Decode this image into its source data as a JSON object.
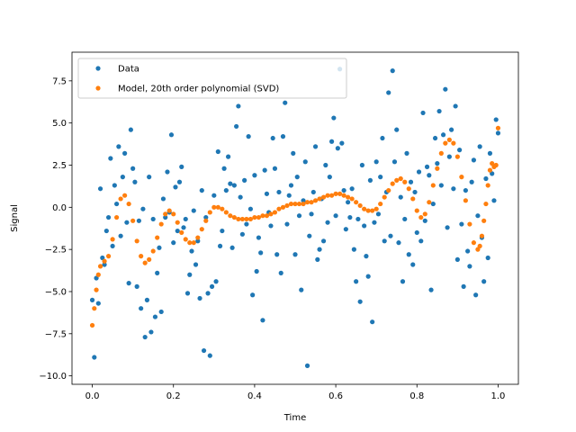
{
  "chart_data": {
    "type": "scatter",
    "title": "",
    "xlabel": "Time",
    "ylabel": "Signal",
    "xlim": [
      -0.05,
      1.05
    ],
    "ylim": [
      -10.5,
      9.2
    ],
    "xticks": [
      0.0,
      0.2,
      0.4,
      0.6,
      0.8,
      1.0
    ],
    "xtick_labels": [
      "0.0",
      "0.2",
      "0.4",
      "0.6",
      "0.8",
      "1.0"
    ],
    "yticks": [
      -10.0,
      -7.5,
      -5.0,
      -2.5,
      0.0,
      2.5,
      5.0,
      7.5
    ],
    "ytick_labels": [
      "−10.0",
      "−7.5",
      "−5.0",
      "−2.5",
      "0.0",
      "2.5",
      "5.0",
      "7.5"
    ],
    "grid": false,
    "legend_position": "upper-left",
    "series": [
      {
        "name": "Data",
        "kind": "scatter",
        "color": "#1f77b4",
        "points": [
          [
            0.0,
            -5.5
          ],
          [
            0.005,
            -8.9
          ],
          [
            0.01,
            -4.2
          ],
          [
            0.015,
            -5.7
          ],
          [
            0.02,
            1.1
          ],
          [
            0.025,
            -3.0
          ],
          [
            0.03,
            -3.4
          ],
          [
            0.035,
            -1.4
          ],
          [
            0.04,
            -0.6
          ],
          [
            0.045,
            2.9
          ],
          [
            0.05,
            -2.3
          ],
          [
            0.055,
            1.3
          ],
          [
            0.06,
            0.2
          ],
          [
            0.065,
            3.6
          ],
          [
            0.07,
            -1.7
          ],
          [
            0.075,
            1.8
          ],
          [
            0.08,
            3.2
          ],
          [
            0.085,
            -0.9
          ],
          [
            0.09,
            -4.5
          ],
          [
            0.095,
            4.6
          ],
          [
            0.1,
            2.3
          ],
          [
            0.105,
            1.5
          ],
          [
            0.11,
            -4.7
          ],
          [
            0.115,
            -0.8
          ],
          [
            0.12,
            -6.0
          ],
          [
            0.125,
            -0.1
          ],
          [
            0.13,
            -7.7
          ],
          [
            0.135,
            -5.5
          ],
          [
            0.14,
            1.8
          ],
          [
            0.145,
            -7.4
          ],
          [
            0.15,
            -0.7
          ],
          [
            0.155,
            -6.5
          ],
          [
            0.16,
            -3.9
          ],
          [
            0.165,
            -2.4
          ],
          [
            0.17,
            -6.2
          ],
          [
            0.175,
            0.5
          ],
          [
            0.18,
            -0.6
          ],
          [
            0.185,
            2.1
          ],
          [
            0.19,
            -0.3
          ],
          [
            0.195,
            4.3
          ],
          [
            0.2,
            -2.1
          ],
          [
            0.205,
            1.2
          ],
          [
            0.21,
            -1.4
          ],
          [
            0.215,
            1.5
          ],
          [
            0.22,
            2.4
          ],
          [
            0.225,
            -1.2
          ],
          [
            0.23,
            -0.7
          ],
          [
            0.235,
            -5.1
          ],
          [
            0.24,
            -4.0
          ],
          [
            0.245,
            -2.6
          ],
          [
            0.25,
            -0.2
          ],
          [
            0.255,
            -3.4
          ],
          [
            0.26,
            -2.0
          ],
          [
            0.265,
            -5.4
          ],
          [
            0.27,
            1.0
          ],
          [
            0.275,
            -8.5
          ],
          [
            0.28,
            -0.6
          ],
          [
            0.285,
            -5.1
          ],
          [
            0.29,
            -8.8
          ],
          [
            0.295,
            -4.7
          ],
          [
            0.3,
            0.7
          ],
          [
            0.305,
            -4.4
          ],
          [
            0.31,
            3.3
          ],
          [
            0.315,
            -2.3
          ],
          [
            0.32,
            -1.4
          ],
          [
            0.325,
            2.3
          ],
          [
            0.33,
            1.0
          ],
          [
            0.335,
            3.0
          ],
          [
            0.34,
            1.4
          ],
          [
            0.345,
            -2.4
          ],
          [
            0.35,
            1.3
          ],
          [
            0.355,
            4.8
          ],
          [
            0.36,
            6.0
          ],
          [
            0.365,
            0.6
          ],
          [
            0.37,
            -1.6
          ],
          [
            0.375,
            1.6
          ],
          [
            0.38,
            -1.0
          ],
          [
            0.385,
            4.2
          ],
          [
            0.39,
            -0.1
          ],
          [
            0.395,
            -5.2
          ],
          [
            0.4,
            1.9
          ],
          [
            0.405,
            -3.8
          ],
          [
            0.41,
            -1.8
          ],
          [
            0.415,
            -2.7
          ],
          [
            0.42,
            -6.7
          ],
          [
            0.425,
            2.2
          ],
          [
            0.43,
            0.8
          ],
          [
            0.435,
            -0.3
          ],
          [
            0.44,
            -1.1
          ],
          [
            0.445,
            4.1
          ],
          [
            0.45,
            2.3
          ],
          [
            0.455,
            -2.8
          ],
          [
            0.46,
            0.9
          ],
          [
            0.465,
            -3.9
          ],
          [
            0.47,
            4.2
          ],
          [
            0.475,
            6.2
          ],
          [
            0.48,
            -1.0
          ],
          [
            0.485,
            0.7
          ],
          [
            0.49,
            1.3
          ],
          [
            0.495,
            3.2
          ],
          [
            0.5,
            -2.8
          ],
          [
            0.505,
            1.8
          ],
          [
            0.51,
            -0.5
          ],
          [
            0.515,
            -4.9
          ],
          [
            0.52,
            0.4
          ],
          [
            0.525,
            2.7
          ],
          [
            0.53,
            -9.4
          ],
          [
            0.535,
            -1.7
          ],
          [
            0.54,
            -0.4
          ],
          [
            0.545,
            0.9
          ],
          [
            0.55,
            3.6
          ],
          [
            0.555,
            -3.1
          ],
          [
            0.56,
            -2.5
          ],
          [
            0.565,
            0.5
          ],
          [
            0.57,
            -2.0
          ],
          [
            0.575,
            2.5
          ],
          [
            0.58,
            -0.9
          ],
          [
            0.585,
            1.8
          ],
          [
            0.59,
            3.9
          ],
          [
            0.595,
            5.3
          ],
          [
            0.6,
            -0.5
          ],
          [
            0.605,
            3.5
          ],
          [
            0.61,
            8.2
          ],
          [
            0.615,
            3.8
          ],
          [
            0.62,
            1.0
          ],
          [
            0.625,
            -1.3
          ],
          [
            0.63,
            0.3
          ],
          [
            0.635,
            -0.6
          ],
          [
            0.64,
            1.1
          ],
          [
            0.645,
            -2.5
          ],
          [
            0.65,
            -4.4
          ],
          [
            0.655,
            -0.7
          ],
          [
            0.66,
            -5.6
          ],
          [
            0.665,
            2.5
          ],
          [
            0.67,
            -1.1
          ],
          [
            0.675,
            -2.9
          ],
          [
            0.68,
            -4.1
          ],
          [
            0.685,
            1.6
          ],
          [
            0.69,
            -6.8
          ],
          [
            0.695,
            -0.9
          ],
          [
            0.7,
            2.7
          ],
          [
            0.705,
            -0.4
          ],
          [
            0.71,
            1.8
          ],
          [
            0.715,
            4.1
          ],
          [
            0.72,
            -2.0
          ],
          [
            0.725,
            0.9
          ],
          [
            0.73,
            6.8
          ],
          [
            0.735,
            -1.7
          ],
          [
            0.74,
            8.1
          ],
          [
            0.745,
            2.7
          ],
          [
            0.75,
            4.6
          ],
          [
            0.755,
            -2.1
          ],
          [
            0.76,
            0.6
          ],
          [
            0.765,
            -4.4
          ],
          [
            0.77,
            -0.7
          ],
          [
            0.775,
            3.2
          ],
          [
            0.78,
            -2.8
          ],
          [
            0.785,
            1.5
          ],
          [
            0.79,
            -3.4
          ],
          [
            0.795,
            0.9
          ],
          [
            0.8,
            -1.5
          ],
          [
            0.805,
            2.1
          ],
          [
            0.81,
            -2.0
          ],
          [
            0.815,
            5.6
          ],
          [
            0.82,
            -0.8
          ],
          [
            0.825,
            2.4
          ],
          [
            0.83,
            1.9
          ],
          [
            0.835,
            -4.9
          ],
          [
            0.84,
            0.2
          ],
          [
            0.845,
            4.1
          ],
          [
            0.85,
            2.6
          ],
          [
            0.855,
            5.7
          ],
          [
            0.86,
            1.3
          ],
          [
            0.865,
            4.3
          ],
          [
            0.87,
            7.0
          ],
          [
            0.875,
            -1.2
          ],
          [
            0.88,
            3.0
          ],
          [
            0.885,
            4.6
          ],
          [
            0.89,
            1.1
          ],
          [
            0.895,
            6.0
          ],
          [
            0.9,
            -3.1
          ],
          [
            0.905,
            3.4
          ],
          [
            0.91,
            -1.0
          ],
          [
            0.915,
            -4.7
          ],
          [
            0.92,
            1.0
          ],
          [
            0.925,
            -2.6
          ],
          [
            0.93,
            -3.5
          ],
          [
            0.935,
            1.5
          ],
          [
            0.94,
            2.8
          ],
          [
            0.945,
            -5.2
          ],
          [
            0.95,
            -0.5
          ],
          [
            0.955,
            3.6
          ],
          [
            0.96,
            -1.8
          ],
          [
            0.965,
            -4.4
          ],
          [
            0.97,
            1.7
          ],
          [
            0.975,
            -3.0
          ],
          [
            0.98,
            3.2
          ],
          [
            0.985,
            2.0
          ],
          [
            0.99,
            0.4
          ],
          [
            0.995,
            5.2
          ],
          [
            1.0,
            4.4
          ]
        ]
      },
      {
        "name": "Model, 20th order polynomial (SVD)",
        "kind": "scatter",
        "color": "#ff7f0e",
        "points": [
          [
            0.0,
            -7.0
          ],
          [
            0.005,
            -6.0
          ],
          [
            0.01,
            -4.9
          ],
          [
            0.015,
            -4.0
          ],
          [
            0.02,
            -3.5
          ],
          [
            0.03,
            -3.2
          ],
          [
            0.04,
            -2.9
          ],
          [
            0.05,
            -1.9
          ],
          [
            0.06,
            -0.6
          ],
          [
            0.07,
            0.5
          ],
          [
            0.08,
            0.7
          ],
          [
            0.09,
            0.2
          ],
          [
            0.1,
            -0.8
          ],
          [
            0.11,
            -2.0
          ],
          [
            0.12,
            -2.9
          ],
          [
            0.13,
            -3.3
          ],
          [
            0.14,
            -3.1
          ],
          [
            0.15,
            -2.6
          ],
          [
            0.16,
            -1.8
          ],
          [
            0.17,
            -1.0
          ],
          [
            0.18,
            -0.4
          ],
          [
            0.19,
            -0.2
          ],
          [
            0.2,
            -0.4
          ],
          [
            0.21,
            -0.9
          ],
          [
            0.22,
            -1.5
          ],
          [
            0.23,
            -1.9
          ],
          [
            0.24,
            -2.1
          ],
          [
            0.25,
            -2.1
          ],
          [
            0.26,
            -1.8
          ],
          [
            0.27,
            -1.3
          ],
          [
            0.28,
            -0.8
          ],
          [
            0.29,
            -0.3
          ],
          [
            0.3,
            0.0
          ],
          [
            0.31,
            0.0
          ],
          [
            0.32,
            -0.1
          ],
          [
            0.33,
            -0.3
          ],
          [
            0.34,
            -0.5
          ],
          [
            0.35,
            -0.6
          ],
          [
            0.36,
            -0.7
          ],
          [
            0.37,
            -0.7
          ],
          [
            0.38,
            -0.7
          ],
          [
            0.39,
            -0.7
          ],
          [
            0.4,
            -0.6
          ],
          [
            0.41,
            -0.6
          ],
          [
            0.42,
            -0.5
          ],
          [
            0.43,
            -0.5
          ],
          [
            0.44,
            -0.4
          ],
          [
            0.45,
            -0.3
          ],
          [
            0.46,
            -0.1
          ],
          [
            0.47,
            0.0
          ],
          [
            0.48,
            0.1
          ],
          [
            0.49,
            0.2
          ],
          [
            0.5,
            0.2
          ],
          [
            0.51,
            0.2
          ],
          [
            0.52,
            0.2
          ],
          [
            0.53,
            0.3
          ],
          [
            0.54,
            0.3
          ],
          [
            0.55,
            0.4
          ],
          [
            0.56,
            0.5
          ],
          [
            0.57,
            0.6
          ],
          [
            0.58,
            0.7
          ],
          [
            0.59,
            0.7
          ],
          [
            0.6,
            0.8
          ],
          [
            0.61,
            0.8
          ],
          [
            0.62,
            0.7
          ],
          [
            0.63,
            0.6
          ],
          [
            0.64,
            0.5
          ],
          [
            0.65,
            0.3
          ],
          [
            0.66,
            0.1
          ],
          [
            0.67,
            -0.1
          ],
          [
            0.68,
            -0.2
          ],
          [
            0.69,
            -0.2
          ],
          [
            0.7,
            -0.1
          ],
          [
            0.71,
            0.2
          ],
          [
            0.72,
            0.6
          ],
          [
            0.73,
            1.0
          ],
          [
            0.74,
            1.4
          ],
          [
            0.75,
            1.6
          ],
          [
            0.76,
            1.7
          ],
          [
            0.77,
            1.5
          ],
          [
            0.78,
            1.1
          ],
          [
            0.79,
            0.5
          ],
          [
            0.8,
            -0.2
          ],
          [
            0.81,
            -0.6
          ],
          [
            0.82,
            -0.4
          ],
          [
            0.83,
            0.3
          ],
          [
            0.84,
            1.3
          ],
          [
            0.85,
            2.3
          ],
          [
            0.86,
            3.2
          ],
          [
            0.87,
            3.8
          ],
          [
            0.88,
            4.0
          ],
          [
            0.89,
            3.8
          ],
          [
            0.9,
            3.0
          ],
          [
            0.91,
            1.8
          ],
          [
            0.92,
            0.4
          ],
          [
            0.93,
            -1.0
          ],
          [
            0.94,
            -2.1
          ],
          [
            0.95,
            -2.5
          ],
          [
            0.955,
            -2.3
          ],
          [
            0.96,
            -1.7
          ],
          [
            0.965,
            -0.8
          ],
          [
            0.97,
            0.2
          ],
          [
            0.975,
            1.3
          ],
          [
            0.98,
            2.2
          ],
          [
            0.985,
            2.6
          ],
          [
            0.99,
            2.4
          ],
          [
            0.995,
            2.5
          ],
          [
            1.0,
            4.7
          ]
        ]
      }
    ]
  }
}
